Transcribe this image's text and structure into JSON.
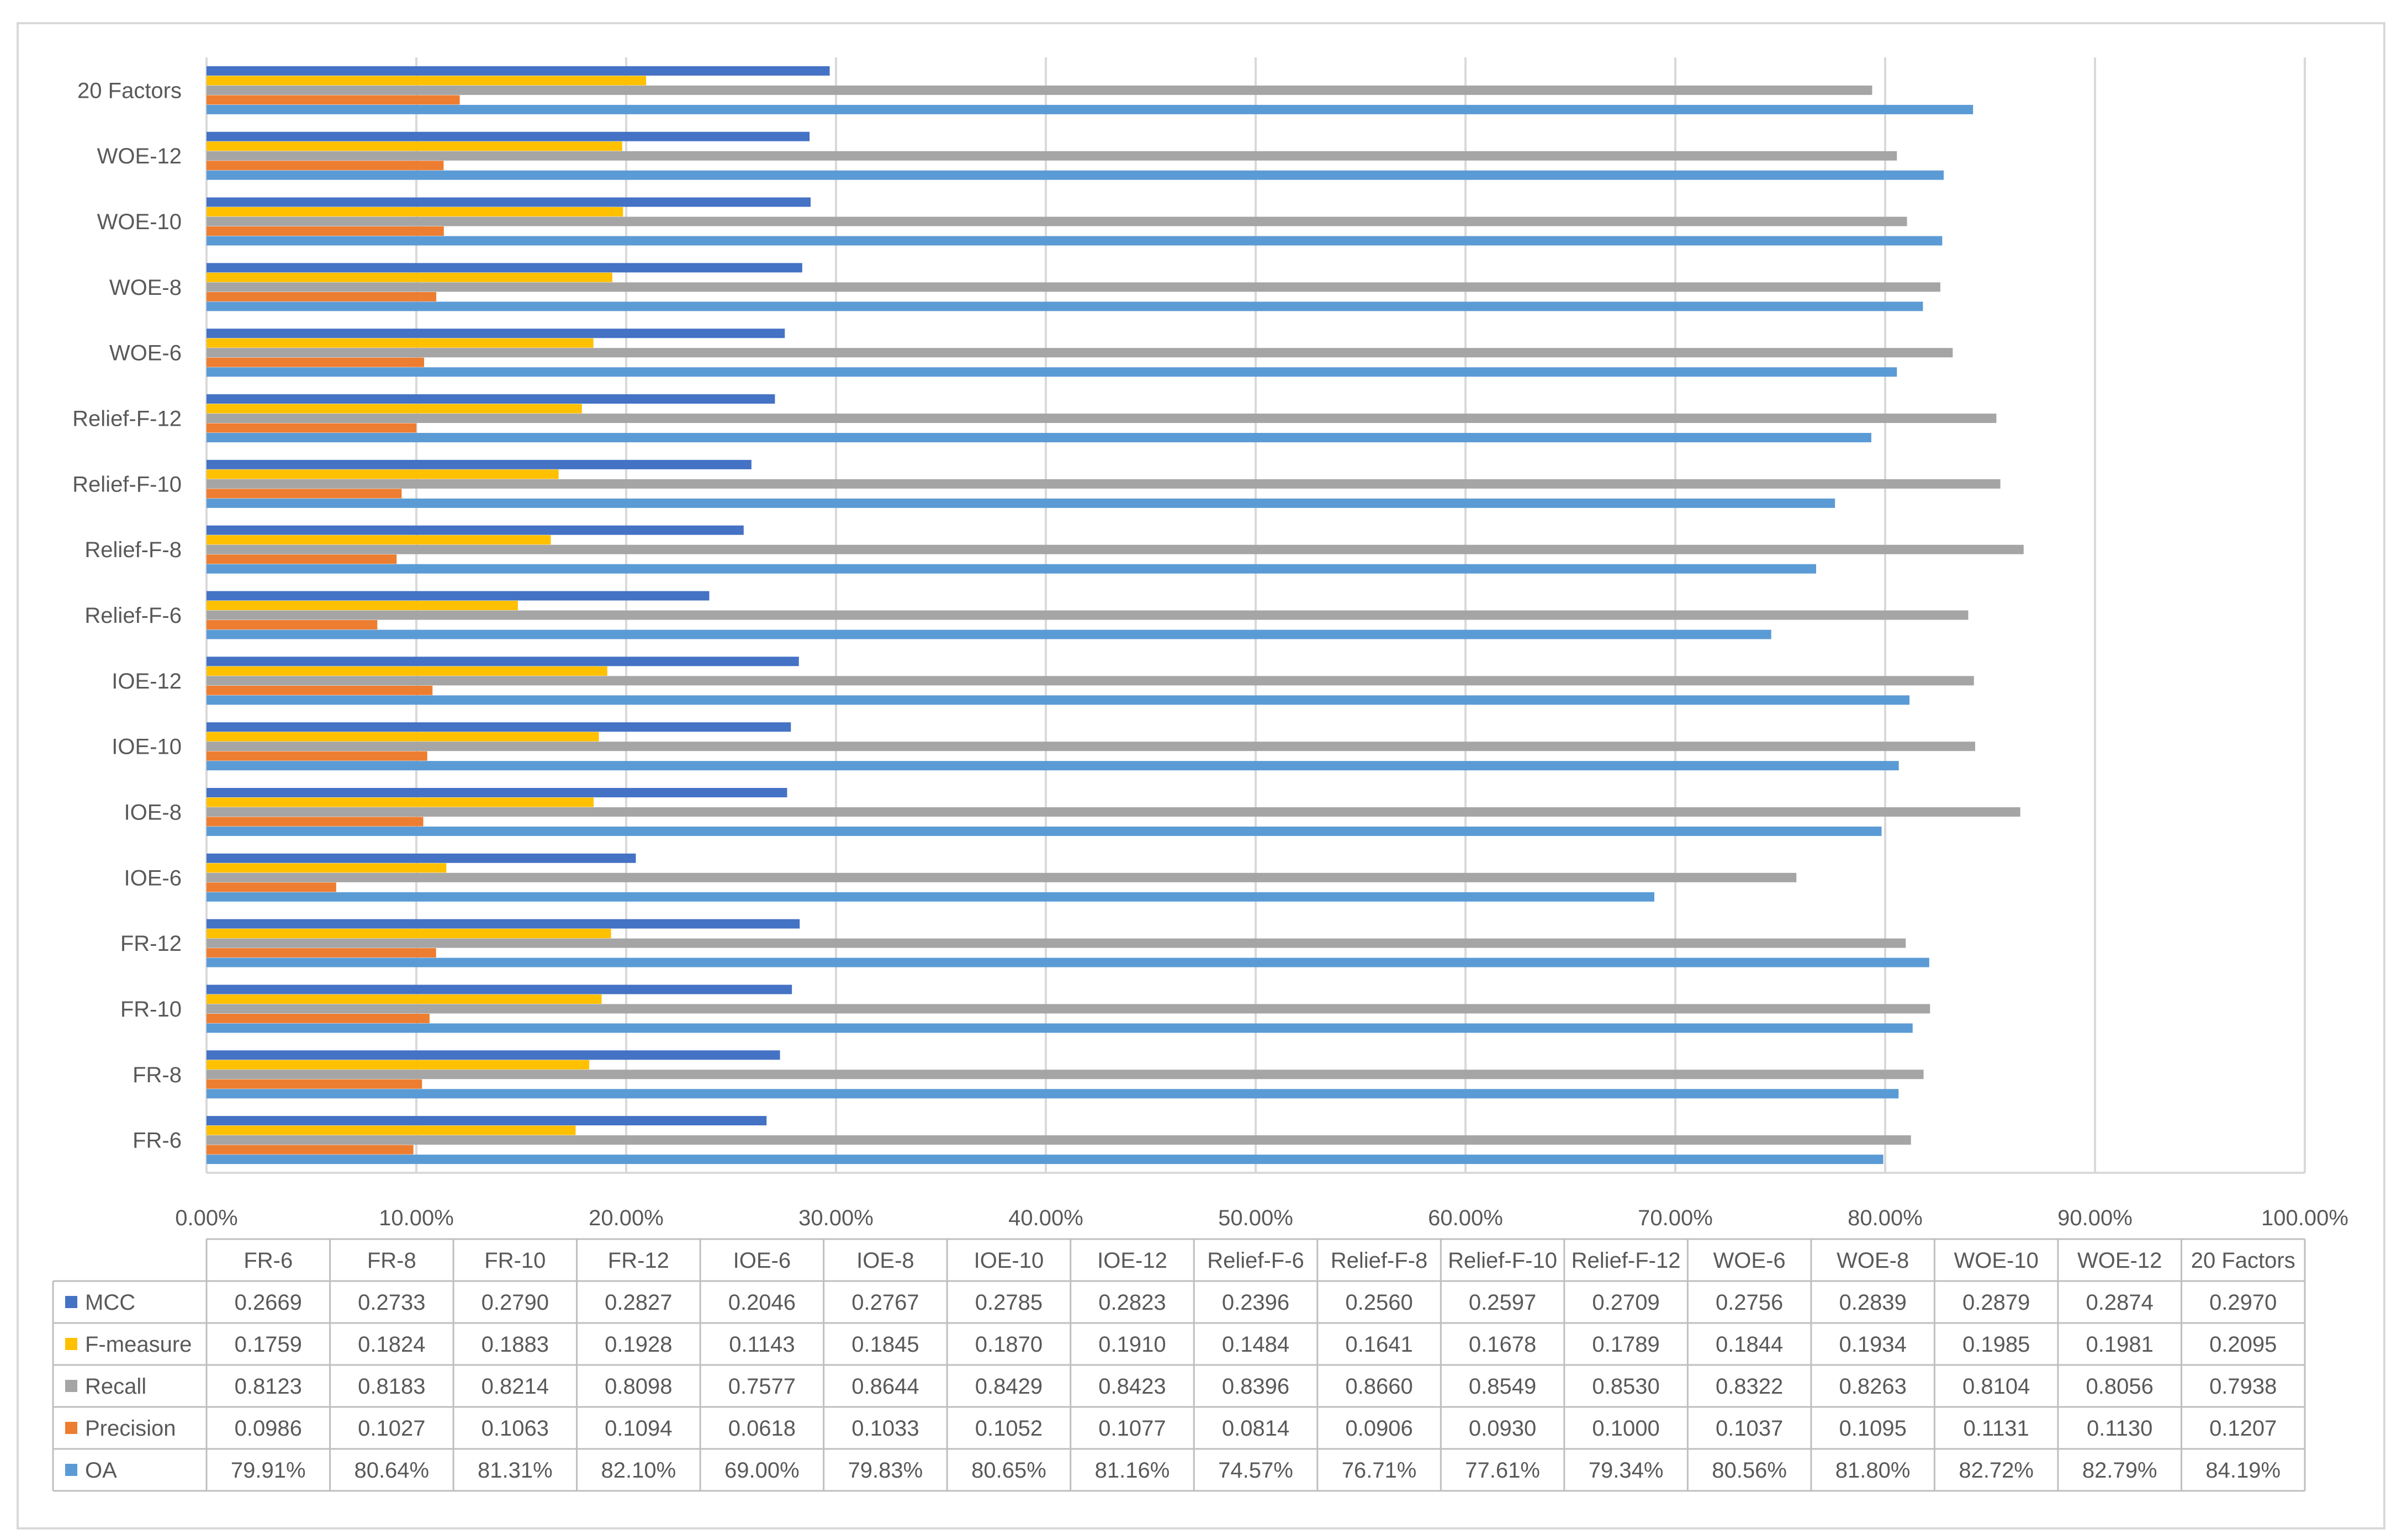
{
  "chart_data": {
    "type": "bar",
    "orientation": "horizontal",
    "categories": [
      "FR-6",
      "FR-8",
      "FR-10",
      "FR-12",
      "IOE-6",
      "IOE-8",
      "IOE-10",
      "IOE-12",
      "Relief-F-6",
      "Relief-F-8",
      "Relief-F-10",
      "Relief-F-12",
      "WOE-6",
      "WOE-8",
      "WOE-10",
      "WOE-12",
      "20 Factors"
    ],
    "xlim": [
      0,
      1
    ],
    "x_ticks": [
      "0.00%",
      "10.00%",
      "20.00%",
      "30.00%",
      "40.00%",
      "50.00%",
      "60.00%",
      "70.00%",
      "80.00%",
      "90.00%",
      "100.00%"
    ],
    "grid": true,
    "legend": "data-table-left",
    "series": [
      {
        "name": "MCC",
        "color": "#4472c4",
        "values": [
          0.2669,
          0.2733,
          0.279,
          0.2827,
          0.2046,
          0.2767,
          0.2785,
          0.2823,
          0.2396,
          0.256,
          0.2597,
          0.2709,
          0.2756,
          0.2839,
          0.2879,
          0.2874,
          0.297
        ],
        "labels": [
          "0.2669",
          "0.2733",
          "0.2790",
          "0.2827",
          "0.2046",
          "0.2767",
          "0.2785",
          "0.2823",
          "0.2396",
          "0.2560",
          "0.2597",
          "0.2709",
          "0.2756",
          "0.2839",
          "0.2879",
          "0.2874",
          "0.2970"
        ]
      },
      {
        "name": "F-measure",
        "color": "#ffc000",
        "values": [
          0.1759,
          0.1824,
          0.1883,
          0.1928,
          0.1143,
          0.1845,
          0.187,
          0.191,
          0.1484,
          0.1641,
          0.1678,
          0.1789,
          0.1844,
          0.1934,
          0.1985,
          0.1981,
          0.2095
        ],
        "labels": [
          "0.1759",
          "0.1824",
          "0.1883",
          "0.1928",
          "0.1143",
          "0.1845",
          "0.1870",
          "0.1910",
          "0.1484",
          "0.1641",
          "0.1678",
          "0.1789",
          "0.1844",
          "0.1934",
          "0.1985",
          "0.1981",
          "0.2095"
        ]
      },
      {
        "name": "Recall",
        "color": "#a5a5a5",
        "values": [
          0.8123,
          0.8183,
          0.8214,
          0.8098,
          0.7577,
          0.8644,
          0.8429,
          0.8423,
          0.8396,
          0.866,
          0.8549,
          0.853,
          0.8322,
          0.8263,
          0.8104,
          0.8056,
          0.7938
        ],
        "labels": [
          "0.8123",
          "0.8183",
          "0.8214",
          "0.8098",
          "0.7577",
          "0.8644",
          "0.8429",
          "0.8423",
          "0.8396",
          "0.8660",
          "0.8549",
          "0.8530",
          "0.8322",
          "0.8263",
          "0.8104",
          "0.8056",
          "0.7938"
        ]
      },
      {
        "name": "Precision",
        "color": "#ed7d31",
        "values": [
          0.0986,
          0.1027,
          0.1063,
          0.1094,
          0.0618,
          0.1033,
          0.1052,
          0.1077,
          0.0814,
          0.0906,
          0.093,
          0.1,
          0.1037,
          0.1095,
          0.1131,
          0.113,
          0.1207
        ],
        "labels": [
          "0.0986",
          "0.1027",
          "0.1063",
          "0.1094",
          "0.0618",
          "0.1033",
          "0.1052",
          "0.1077",
          "0.0814",
          "0.0906",
          "0.0930",
          "0.1000",
          "0.1037",
          "0.1095",
          "0.1131",
          "0.1130",
          "0.1207"
        ]
      },
      {
        "name": "OA",
        "color": "#5b9bd5",
        "values": [
          0.7991,
          0.8064,
          0.8131,
          0.821,
          0.69,
          0.7983,
          0.8065,
          0.8116,
          0.7457,
          0.7671,
          0.7761,
          0.7934,
          0.8056,
          0.818,
          0.8272,
          0.8279,
          0.8419
        ],
        "labels": [
          "79.91%",
          "80.64%",
          "81.31%",
          "82.10%",
          "69.00%",
          "79.83%",
          "80.65%",
          "81.16%",
          "74.57%",
          "76.71%",
          "77.61%",
          "79.34%",
          "80.56%",
          "81.80%",
          "82.72%",
          "82.79%",
          "84.19%"
        ]
      }
    ]
  }
}
